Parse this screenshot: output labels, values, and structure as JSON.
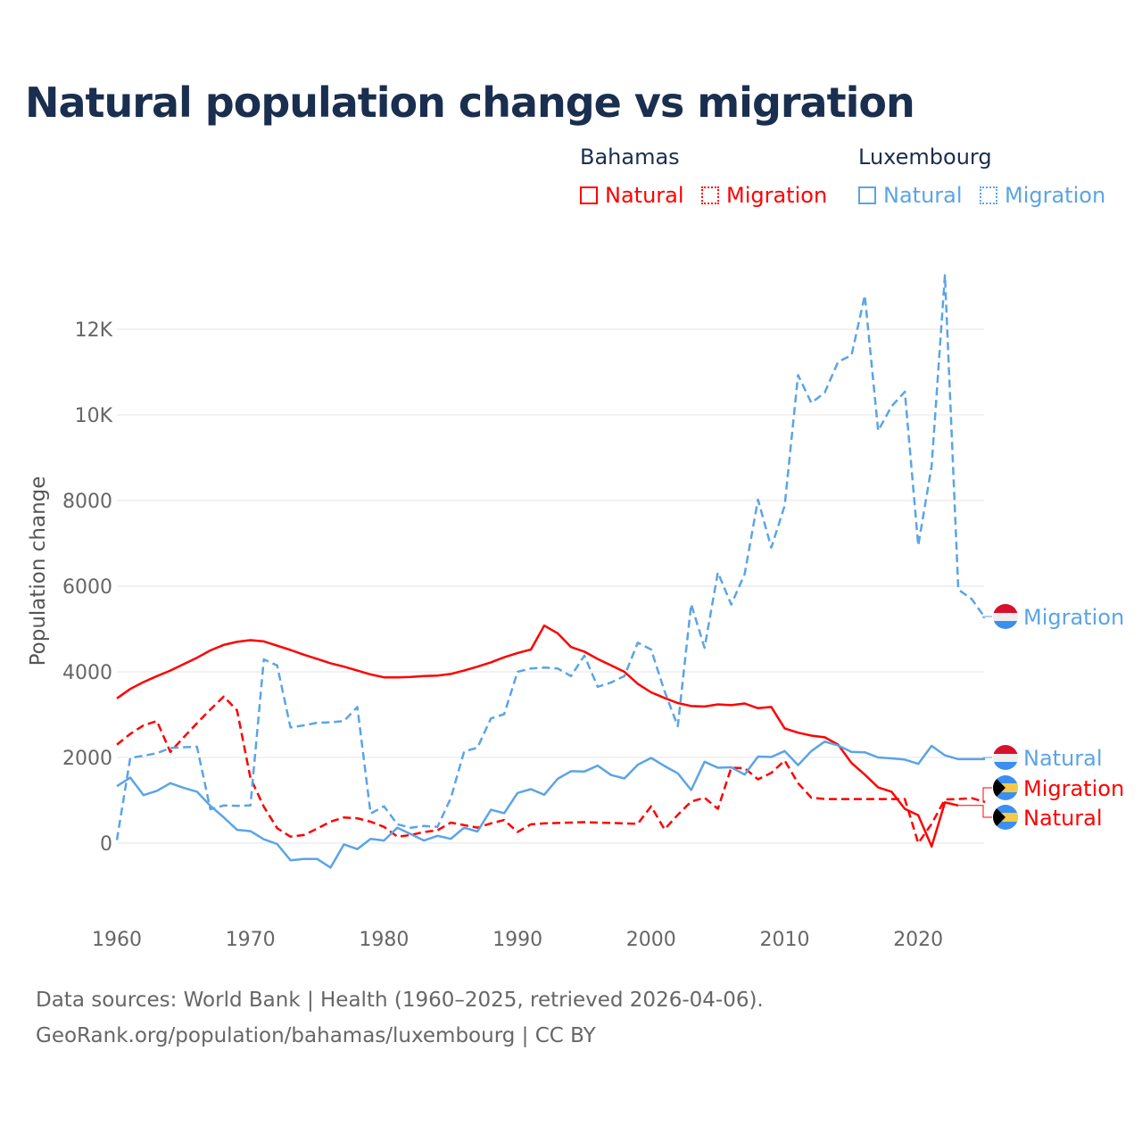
{
  "title": "Natural population change vs migration",
  "legend": {
    "groups": [
      {
        "name": "Bahamas",
        "items": [
          "Natural",
          "Migration"
        ],
        "color": "#ff0000"
      },
      {
        "name": "Luxembourg",
        "items": [
          "Natural",
          "Migration"
        ],
        "color": "#5ba4e6"
      }
    ]
  },
  "source": {
    "line1": "Data sources: World Bank | Health (1960–2025, retrieved 2026-04-06).",
    "line2": "GeoRank.org/population/bahamas/luxembourg | CC BY"
  },
  "chart_data": {
    "type": "line",
    "title": "Natural population change vs migration",
    "xlabel": "",
    "ylabel": "Population change",
    "xlim": [
      1960,
      2025
    ],
    "ylim": [
      -1000,
      14000
    ],
    "x_ticks": [
      1960,
      1970,
      1980,
      1990,
      2000,
      2010,
      2020
    ],
    "y_ticks": [
      0,
      2000,
      4000,
      6000,
      8000,
      10000,
      12000
    ],
    "y_tick_labels": [
      "0",
      "2000",
      "4000",
      "6000",
      "8000",
      "10K",
      "12K"
    ],
    "grid": true,
    "legend_position": "top-right",
    "series": [
      {
        "name": "Bahamas Natural",
        "label": "Natural",
        "country": "Bahamas",
        "color": "#ff0000",
        "dash": "solid",
        "start": 1960,
        "values": [
          3380,
          3600,
          3760,
          3900,
          4030,
          4180,
          4330,
          4500,
          4630,
          4700,
          4740,
          4710,
          4610,
          4510,
          4400,
          4300,
          4200,
          4120,
          4030,
          3940,
          3870,
          3870,
          3880,
          3900,
          3910,
          3950,
          4030,
          4120,
          4220,
          4340,
          4440,
          4520,
          5080,
          4900,
          4580,
          4470,
          4300,
          4150,
          4000,
          3720,
          3520,
          3390,
          3270,
          3200,
          3190,
          3240,
          3220,
          3260,
          3150,
          3180,
          2680,
          2580,
          2510,
          2470,
          2300,
          1870,
          1600,
          1300,
          1200,
          800,
          650,
          -80,
          950,
          880
        ]
      },
      {
        "name": "Bahamas Migration",
        "label": "Migration",
        "country": "Bahamas",
        "color": "#ff0000",
        "dash": "dashed",
        "start": 1960,
        "values": [
          2300,
          2550,
          2750,
          2850,
          2130,
          2470,
          2800,
          3120,
          3420,
          3100,
          1520,
          850,
          350,
          150,
          190,
          340,
          500,
          600,
          580,
          500,
          380,
          150,
          190,
          260,
          300,
          480,
          420,
          360,
          460,
          540,
          260,
          440,
          460,
          470,
          480,
          490,
          480,
          470,
          460,
          450,
          860,
          320,
          660,
          970,
          1060,
          800,
          1760,
          1750,
          1490,
          1640,
          1930,
          1400,
          1060,
          1030,
          1030,
          1030,
          1030,
          1030,
          1030,
          1030,
          0,
          450,
          1020,
          1030,
          1050,
          960
        ]
      },
      {
        "name": "Luxembourg Natural",
        "label": "Natural",
        "country": "Luxembourg",
        "color": "#5ba4e6",
        "dash": "solid",
        "start": 1960,
        "values": [
          1330,
          1530,
          1120,
          1220,
          1400,
          1290,
          1200,
          870,
          600,
          310,
          280,
          90,
          -20,
          -400,
          -370,
          -370,
          -570,
          -30,
          -140,
          100,
          60,
          360,
          210,
          60,
          170,
          100,
          360,
          270,
          780,
          700,
          1170,
          1260,
          1130,
          1500,
          1680,
          1670,
          1810,
          1590,
          1510,
          1830,
          1990,
          1800,
          1630,
          1240,
          1900,
          1760,
          1770,
          1600,
          2020,
          2010,
          2150,
          1820,
          2150,
          2370,
          2280,
          2130,
          2120,
          2000,
          1980,
          1950,
          1850,
          2270,
          2050,
          1960,
          1960,
          1960
        ]
      },
      {
        "name": "Luxembourg Migration",
        "label": "Migration",
        "country": "Luxembourg",
        "color": "#5ba4e6",
        "dash": "dashed",
        "start": 1960,
        "values": [
          70,
          1990,
          2040,
          2100,
          2220,
          2240,
          2250,
          790,
          880,
          870,
          880,
          4290,
          4150,
          2700,
          2750,
          2810,
          2820,
          2850,
          3180,
          690,
          860,
          440,
          360,
          400,
          380,
          1050,
          2140,
          2230,
          2910,
          3010,
          4000,
          4080,
          4100,
          4080,
          3900,
          4380,
          3650,
          3750,
          3900,
          4680,
          4520,
          3550,
          2730,
          5580,
          4560,
          6320,
          5570,
          6280,
          8020,
          6900,
          7880,
          10930,
          10280,
          10520,
          11240,
          11390,
          12790,
          9630,
          10200,
          10540,
          6950,
          8800,
          13260,
          5920,
          5700,
          5260
        ]
      }
    ],
    "end_labels": [
      {
        "series": 3,
        "text": "Migration",
        "flag": "luxembourg"
      },
      {
        "series": 2,
        "text": "Natural",
        "flag": "luxembourg"
      },
      {
        "series": 1,
        "text": "Migration",
        "flag": "bahamas"
      },
      {
        "series": 0,
        "text": "Natural",
        "flag": "bahamas"
      }
    ]
  }
}
